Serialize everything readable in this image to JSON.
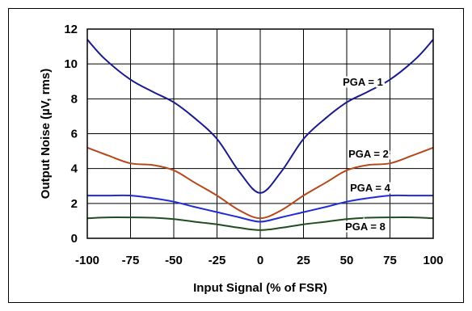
{
  "chart_data": {
    "type": "line",
    "title": "",
    "xlabel": "Input Signal (% of FSR)",
    "ylabel": "Output Noise (µV, rms)",
    "xlim": [
      -100,
      100
    ],
    "ylim": [
      0,
      12
    ],
    "xticks": [
      -100,
      -75,
      -50,
      -25,
      0,
      25,
      50,
      75,
      100
    ],
    "yticks": [
      0,
      2,
      4,
      6,
      8,
      10,
      12
    ],
    "xtick_labels": [
      "-100",
      "-75",
      "-50",
      "-25",
      "0",
      "25",
      "50",
      "75",
      "100"
    ],
    "ytick_labels": [
      "0",
      "2",
      "4",
      "6",
      "8",
      "10",
      "12"
    ],
    "grid": true,
    "legend": "inline labels",
    "series": [
      {
        "name": "PGA = 1",
        "color": "#1a1a8c",
        "x": [
          -100,
          -90,
          -75,
          -62,
          -50,
          -38,
          -25,
          -12,
          0,
          12,
          25,
          38,
          50,
          62,
          75,
          90,
          100
        ],
        "y": [
          11.4,
          10.3,
          9.1,
          8.4,
          7.8,
          6.9,
          5.7,
          3.8,
          2.6,
          3.8,
          5.7,
          6.9,
          7.8,
          8.4,
          9.1,
          10.3,
          11.4
        ]
      },
      {
        "name": "PGA = 2",
        "color": "#b5481a",
        "x": [
          -100,
          -88,
          -75,
          -62,
          -50,
          -38,
          -25,
          -12,
          0,
          12,
          25,
          38,
          50,
          62,
          75,
          88,
          100
        ],
        "y": [
          5.2,
          4.75,
          4.3,
          4.2,
          3.9,
          3.2,
          2.45,
          1.6,
          1.15,
          1.6,
          2.45,
          3.2,
          3.9,
          4.2,
          4.3,
          4.75,
          5.2
        ]
      },
      {
        "name": "PGA = 4",
        "color": "#1f2bd6",
        "x": [
          -100,
          -88,
          -75,
          -62,
          -50,
          -38,
          -25,
          -12,
          0,
          12,
          25,
          38,
          50,
          62,
          75,
          88,
          100
        ],
        "y": [
          2.45,
          2.45,
          2.45,
          2.3,
          2.1,
          1.8,
          1.5,
          1.2,
          0.95,
          1.2,
          1.5,
          1.8,
          2.1,
          2.3,
          2.45,
          2.45,
          2.45
        ]
      },
      {
        "name": "PGA = 8",
        "color": "#1f4d1f",
        "x": [
          -100,
          -88,
          -75,
          -62,
          -50,
          -38,
          -25,
          -12,
          0,
          12,
          25,
          38,
          50,
          62,
          75,
          88,
          100
        ],
        "y": [
          1.15,
          1.2,
          1.2,
          1.18,
          1.1,
          0.95,
          0.8,
          0.6,
          0.47,
          0.6,
          0.8,
          0.95,
          1.1,
          1.18,
          1.2,
          1.2,
          1.15
        ]
      }
    ]
  }
}
